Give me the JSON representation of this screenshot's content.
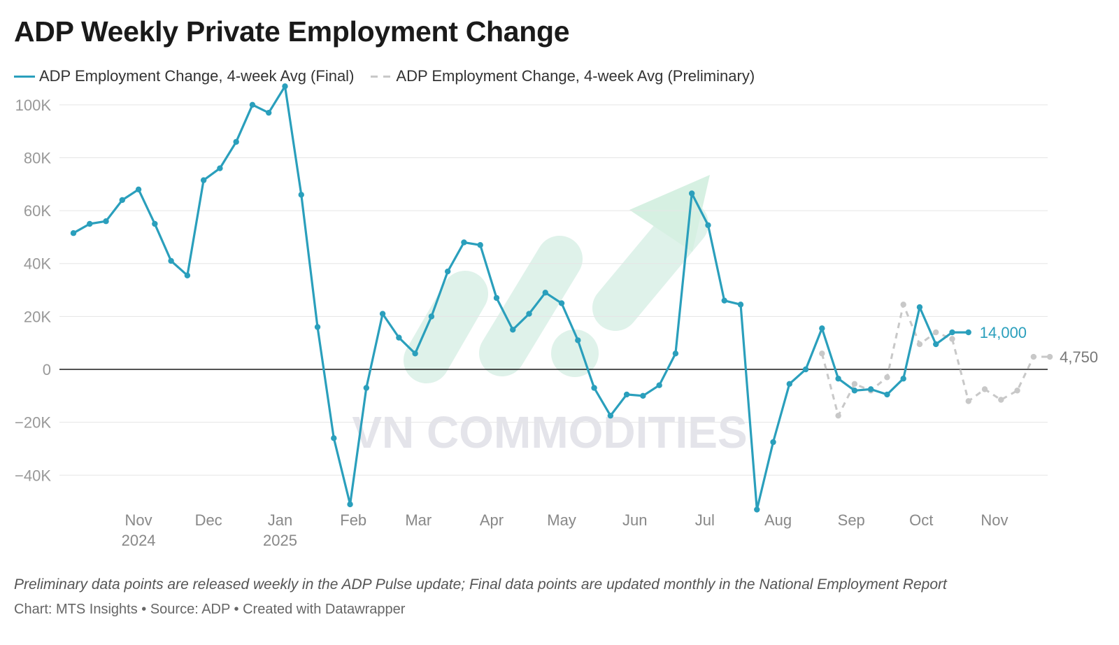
{
  "title": "ADP Weekly Private Employment Change",
  "legend": {
    "final": "ADP Employment Change, 4-week Avg (Final)",
    "preliminary": "ADP Employment Change, 4-week Avg (Preliminary)"
  },
  "watermark": "VN COMMODITIES",
  "footer": {
    "note": "Preliminary data points are released weekly in the ADP Pulse update; Final data points are updated monthly in the National Employment Report",
    "credit": "Chart: MTS Insights • Source: ADP • Created with Datawrapper"
  },
  "colors": {
    "final": "#2a9fbc",
    "preliminary": "#c8c8c8",
    "grid": "#e5e5e5",
    "zero_line": "#1a1a1a"
  },
  "chart_data": {
    "type": "line",
    "title": "ADP Weekly Private Employment Change",
    "ylim": [
      -55000,
      110000
    ],
    "yticks": [
      100000,
      80000,
      60000,
      40000,
      20000,
      0,
      -20000,
      -40000
    ],
    "ytick_labels": [
      "100K",
      "80K",
      "60K",
      "40K",
      "20K",
      "0",
      "−20K",
      "−40K"
    ],
    "xlim": [
      0,
      61.5
    ],
    "xticks": [
      {
        "x": 4,
        "label": "Nov",
        "sub": "2024"
      },
      {
        "x": 8.3,
        "label": "Dec",
        "sub": ""
      },
      {
        "x": 12.7,
        "label": "Jan",
        "sub": "2025"
      },
      {
        "x": 17.2,
        "label": "Feb",
        "sub": ""
      },
      {
        "x": 21.2,
        "label": "Mar",
        "sub": ""
      },
      {
        "x": 25.7,
        "label": "Apr",
        "sub": ""
      },
      {
        "x": 30,
        "label": "May",
        "sub": ""
      },
      {
        "x": 34.5,
        "label": "Jun",
        "sub": ""
      },
      {
        "x": 38.8,
        "label": "Jul",
        "sub": ""
      },
      {
        "x": 43.3,
        "label": "Aug",
        "sub": ""
      },
      {
        "x": 47.8,
        "label": "Sep",
        "sub": ""
      },
      {
        "x": 52.1,
        "label": "Oct",
        "sub": ""
      },
      {
        "x": 56.6,
        "label": "Nov",
        "sub": ""
      }
    ],
    "grid": true,
    "series": [
      {
        "name": "ADP Employment Change, 4-week Avg (Final)",
        "x": [
          0,
          1,
          2,
          3,
          4,
          5,
          6,
          7,
          8,
          9,
          10,
          11,
          12,
          13,
          14,
          15,
          16,
          17,
          18,
          19,
          20,
          21,
          22,
          23,
          24,
          25,
          26,
          27,
          28,
          29,
          30,
          31,
          32,
          33,
          34,
          35,
          36,
          37,
          38,
          39,
          40,
          41,
          42,
          43,
          44,
          45,
          46,
          47,
          48,
          49,
          50,
          51,
          52,
          53,
          54,
          55
        ],
        "values": [
          51500,
          55000,
          56000,
          64000,
          68000,
          55000,
          41000,
          35500,
          71500,
          76000,
          86000,
          100000,
          97000,
          107000,
          66000,
          16000,
          -26000,
          -51000,
          -7000,
          21000,
          12000,
          6000,
          20000,
          37000,
          48000,
          47000,
          27000,
          15000,
          21000,
          29000,
          25000,
          11000,
          -7000,
          -17500,
          -9500,
          -10000,
          -6000,
          6000,
          66500,
          54500,
          26000,
          24500,
          -53000,
          -27500,
          -5500,
          0,
          15500,
          -3500,
          -8000,
          -7500,
          -9500,
          -3500,
          23500,
          9500,
          14000,
          14000
        ],
        "end_label": "14,000"
      },
      {
        "name": "ADP Employment Change, 4-week Avg (Preliminary)",
        "x": [
          46,
          47,
          48,
          49,
          50,
          51,
          52,
          53,
          54,
          55,
          56,
          57,
          58,
          59,
          60
        ],
        "values": [
          6000,
          -17500,
          -5500,
          -8000,
          -3000,
          24500,
          9500,
          14000,
          11500,
          -12000,
          -7500,
          -11500,
          -8000,
          4750,
          4750
        ],
        "end_label": "4,750"
      }
    ]
  }
}
